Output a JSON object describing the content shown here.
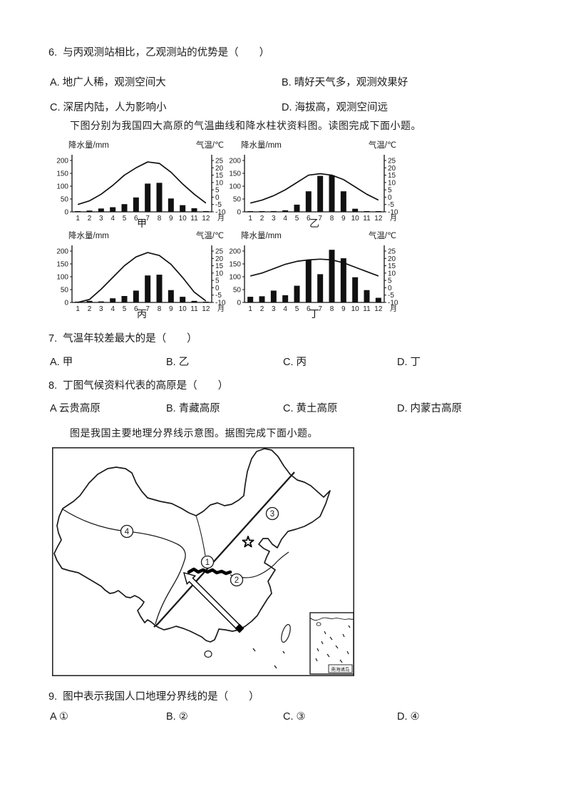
{
  "page": {
    "ink": "#1b1b1b",
    "paper": "#ffffff"
  },
  "intros": {
    "charts": "下图分别为我国四大高原的气温曲线和降水柱状资料图。读图完成下面小题。",
    "map": "图是我国主要地理分界线示意图。据图完成下面小题。"
  },
  "questions": [
    {
      "num": "6.",
      "text": "与丙观测站相比，乙观测站的优势是（　　）",
      "options": [
        "A. 地广人稀，观测空间大",
        "B. 晴好天气多，观测效果好",
        "C. 深居内陆，人为影响小",
        "D. 海拔高，观测空间远"
      ]
    },
    {
      "num": "7.",
      "text": "气温年较差最大的是（　　）",
      "options": [
        "A. 甲",
        "B. 乙",
        "C. 丙",
        "D. 丁"
      ]
    },
    {
      "num": "8.",
      "text": "丁图气候资料代表的高原是（　　）",
      "options": [
        "A 云贵高原",
        "B. 青藏高原",
        "C. 黄土高原",
        "D. 内蒙古高原"
      ]
    },
    {
      "num": "9.",
      "text": "图中表示我国人口地理分界线的是（　　）",
      "options": [
        "A ①",
        "B. ②",
        "C. ③",
        "D. ④"
      ]
    }
  ],
  "chart_data": [
    {
      "type": "bar+line",
      "name": "甲",
      "ylabel_left": "降水量/mm",
      "ylabel_right": "气温/℃",
      "xlabel_suffix": "月",
      "months": [
        1,
        2,
        3,
        4,
        5,
        6,
        7,
        8,
        9,
        10,
        11,
        12
      ],
      "precip_mm": [
        3,
        5,
        13,
        18,
        30,
        56,
        110,
        113,
        52,
        26,
        14,
        3
      ],
      "temp_c": [
        -5,
        -2.5,
        2,
        8,
        15,
        20,
        24,
        23,
        17,
        9,
        2,
        -4
      ],
      "ylim_left": [
        0,
        200
      ],
      "yticks_left": [
        0,
        50,
        100,
        150,
        200
      ],
      "ylim_right": [
        -10,
        25
      ],
      "yticks_right": [
        25,
        20,
        15,
        10,
        5,
        0,
        -5,
        -10
      ]
    },
    {
      "type": "bar+line",
      "name": "乙",
      "ylabel_left": "降水量/mm",
      "ylabel_right": "气温/℃",
      "xlabel_suffix": "月",
      "months": [
        1,
        2,
        3,
        4,
        5,
        6,
        7,
        8,
        9,
        10,
        11,
        12
      ],
      "precip_mm": [
        1,
        1,
        3,
        6,
        28,
        80,
        140,
        142,
        80,
        12,
        3,
        1
      ],
      "temp_c": [
        -4,
        -2,
        1,
        5,
        10,
        15,
        16,
        15,
        12,
        7,
        2,
        -2
      ],
      "ylim_left": [
        0,
        200
      ],
      "yticks_left": [
        0,
        50,
        100,
        150,
        200
      ],
      "ylim_right": [
        -10,
        25
      ],
      "yticks_right": [
        25,
        20,
        15,
        10,
        5,
        0,
        -5,
        -10
      ]
    },
    {
      "type": "bar+line",
      "name": "丙",
      "ylabel_left": "降水量/mm",
      "ylabel_right": "气温/℃",
      "xlabel_suffix": "月",
      "months": [
        1,
        2,
        3,
        4,
        5,
        6,
        7,
        8,
        9,
        10,
        11,
        12
      ],
      "precip_mm": [
        3,
        6,
        4,
        16,
        25,
        46,
        105,
        108,
        48,
        22,
        6,
        3
      ],
      "temp_c": [
        -10,
        -8,
        -1,
        7,
        15,
        21,
        24,
        22,
        16,
        7,
        -3,
        -9
      ],
      "ylim_left": [
        0,
        200
      ],
      "yticks_left": [
        0,
        50,
        100,
        150,
        200
      ],
      "ylim_right": [
        -10,
        25
      ],
      "yticks_right": [
        25,
        20,
        15,
        10,
        5,
        0,
        -5,
        -10
      ]
    },
    {
      "type": "bar+line",
      "name": "丁",
      "ylabel_left": "降水量/mm",
      "ylabel_right": "气温/℃",
      "xlabel_suffix": "月",
      "months": [
        1,
        2,
        3,
        4,
        5,
        6,
        7,
        8,
        9,
        10,
        11,
        12
      ],
      "precip_mm": [
        22,
        24,
        46,
        28,
        65,
        165,
        110,
        205,
        172,
        98,
        48,
        18
      ],
      "temp_c": [
        8,
        10,
        13,
        16,
        18,
        19,
        19.5,
        19,
        17,
        14,
        11,
        8
      ],
      "ylim_left": [
        0,
        200
      ],
      "yticks_left": [
        0,
        50,
        100,
        150,
        200
      ],
      "ylim_right": [
        -10,
        25
      ],
      "yticks_right": [
        25,
        20,
        15,
        10,
        5,
        0,
        -5,
        -10
      ]
    }
  ],
  "map": {
    "markers": [
      "1",
      "2",
      "3",
      "4"
    ],
    "inset_label": "南海诸岛"
  }
}
